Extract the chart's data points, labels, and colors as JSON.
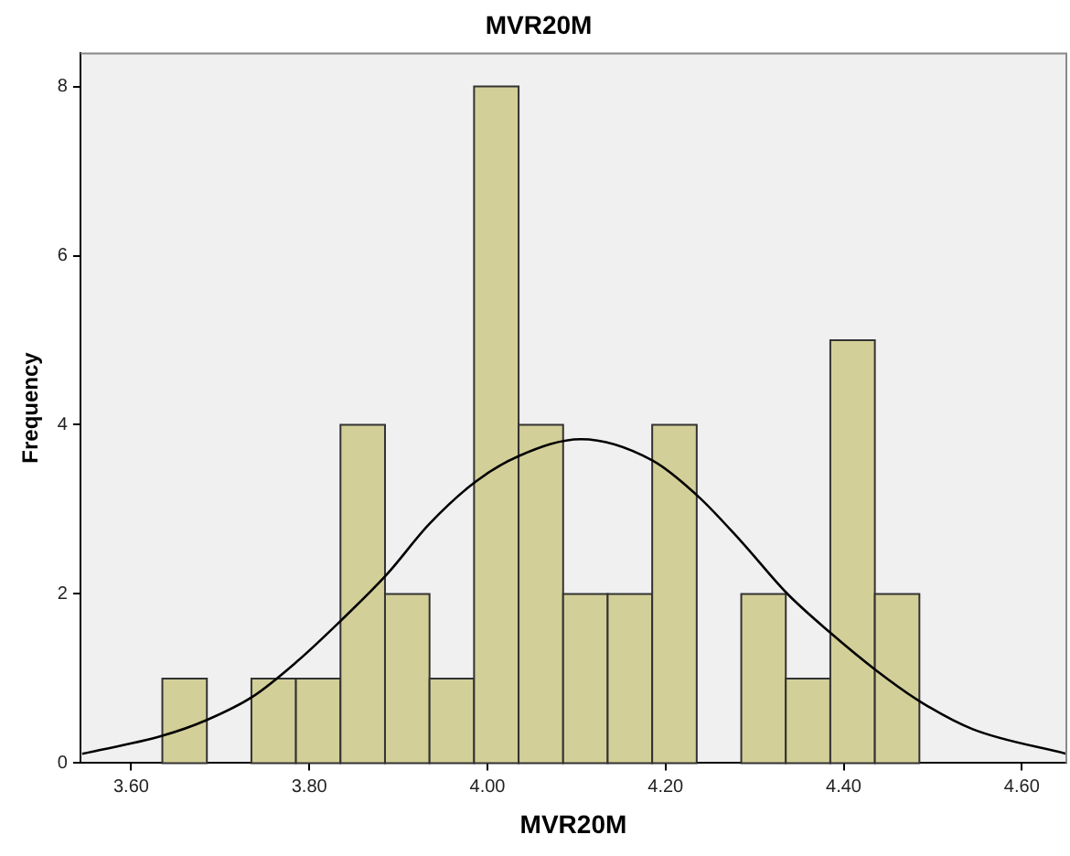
{
  "chart_data": {
    "type": "histogram",
    "title": "MVR20M",
    "xlabel": "MVR20M",
    "ylabel": "Frequency",
    "bins": [
      3.635,
      3.685,
      3.735,
      3.785,
      3.835,
      3.885,
      3.935,
      3.985,
      4.035,
      4.085,
      4.135,
      4.185,
      4.235,
      4.285,
      4.335,
      4.385,
      4.435,
      4.485
    ],
    "values": [
      1,
      0,
      1,
      1,
      4,
      2,
      1,
      8,
      4,
      2,
      2,
      4,
      0,
      2,
      1,
      5,
      2
    ],
    "color": "#d3cf98",
    "series": [
      {
        "type": "line",
        "color": "#000000",
        "x": [
          3.545,
          3.634,
          3.685,
          3.737,
          3.785,
          3.836,
          3.887,
          3.935,
          3.987,
          4.035,
          4.105,
          4.185,
          4.237,
          4.285,
          4.336,
          4.384,
          4.436,
          4.487,
          4.545,
          4.65
        ],
        "values": [
          0.11,
          0.32,
          0.51,
          0.79,
          1.19,
          1.69,
          2.23,
          2.83,
          3.33,
          3.63,
          3.83,
          3.58,
          3.15,
          2.62,
          2.01,
          1.55,
          1.1,
          0.72,
          0.4,
          0.11
        ]
      }
    ],
    "marker": "none",
    "grid": false,
    "xlim": [
      3.543,
      4.65
    ],
    "xticks": [
      {
        "value": 3.6,
        "label": "3.60"
      },
      {
        "value": 3.8,
        "label": "3.80"
      },
      {
        "value": 4.0,
        "label": "4.00"
      },
      {
        "value": 4.2,
        "label": "4.20"
      },
      {
        "value": 4.4,
        "label": "4.40"
      },
      {
        "value": 4.6,
        "label": "4.60"
      }
    ],
    "ylim": [
      0,
      8.4
    ],
    "yticks": [
      0,
      2,
      4,
      6,
      8
    ]
  }
}
